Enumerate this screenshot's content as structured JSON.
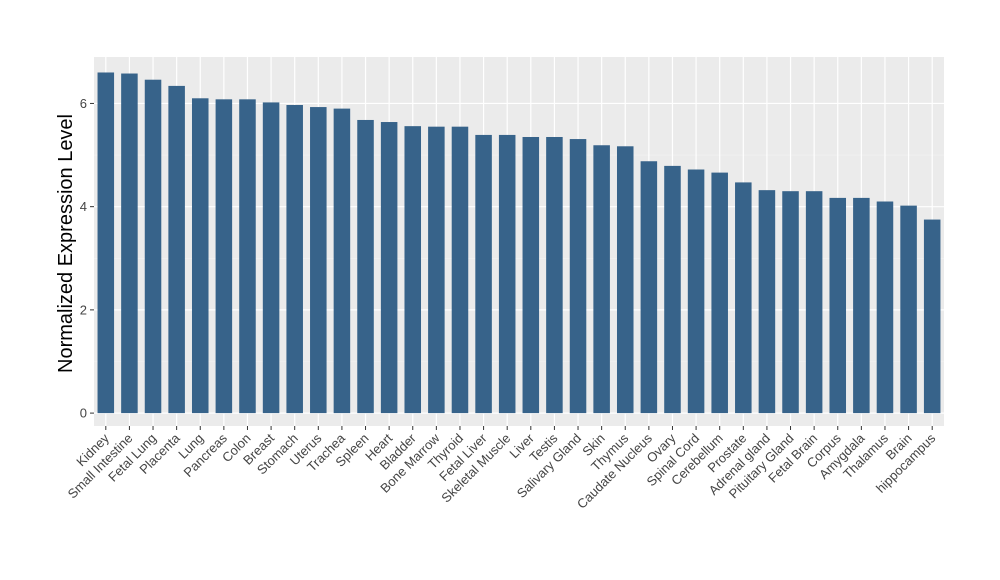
{
  "chart_data": {
    "type": "bar",
    "xlabel": "",
    "ylabel": "Normalized Expression Level",
    "ylim": [
      -0.25,
      6.9
    ],
    "yticks": [
      0,
      2,
      4,
      6
    ],
    "grid": true,
    "colors": {
      "bar": "#37638A",
      "panel": "#EBEBEB",
      "grid_major": "#FFFFFF",
      "grid_minor": "#F3F3F3",
      "tick": "#333333"
    },
    "categories": [
      "Kidney",
      "Small Intestine",
      "Fetal Lung",
      "Placenta",
      "Lung",
      "Pancreas",
      "Colon",
      "Breast",
      "Stomach",
      "Uterus",
      "Trachea",
      "Spleen",
      "Heart",
      "Bladder",
      "Bone Marrow",
      "Thyroid",
      "Fetal Liver",
      "Skeletal Muscle",
      "Liver",
      "Testis",
      "Salivary Gland",
      "Skin",
      "Thymus",
      "Caudate Nucleus",
      "Ovary",
      "Spinal Cord",
      "Cerebellum",
      "Prostate",
      "Adrenal gland",
      "Pituitary Gland",
      "Fetal Brain",
      "Corpus",
      "Amygdala",
      "Thalamus",
      "Brain",
      "hippocampus"
    ],
    "values": [
      6.6,
      6.58,
      6.46,
      6.34,
      6.1,
      6.08,
      6.08,
      6.02,
      5.97,
      5.93,
      5.9,
      5.68,
      5.64,
      5.56,
      5.55,
      5.55,
      5.39,
      5.39,
      5.35,
      5.35,
      5.31,
      5.19,
      5.17,
      4.88,
      4.79,
      4.72,
      4.66,
      4.47,
      4.32,
      4.3,
      4.3,
      4.17,
      4.17,
      4.1,
      4.02,
      3.75
    ]
  }
}
